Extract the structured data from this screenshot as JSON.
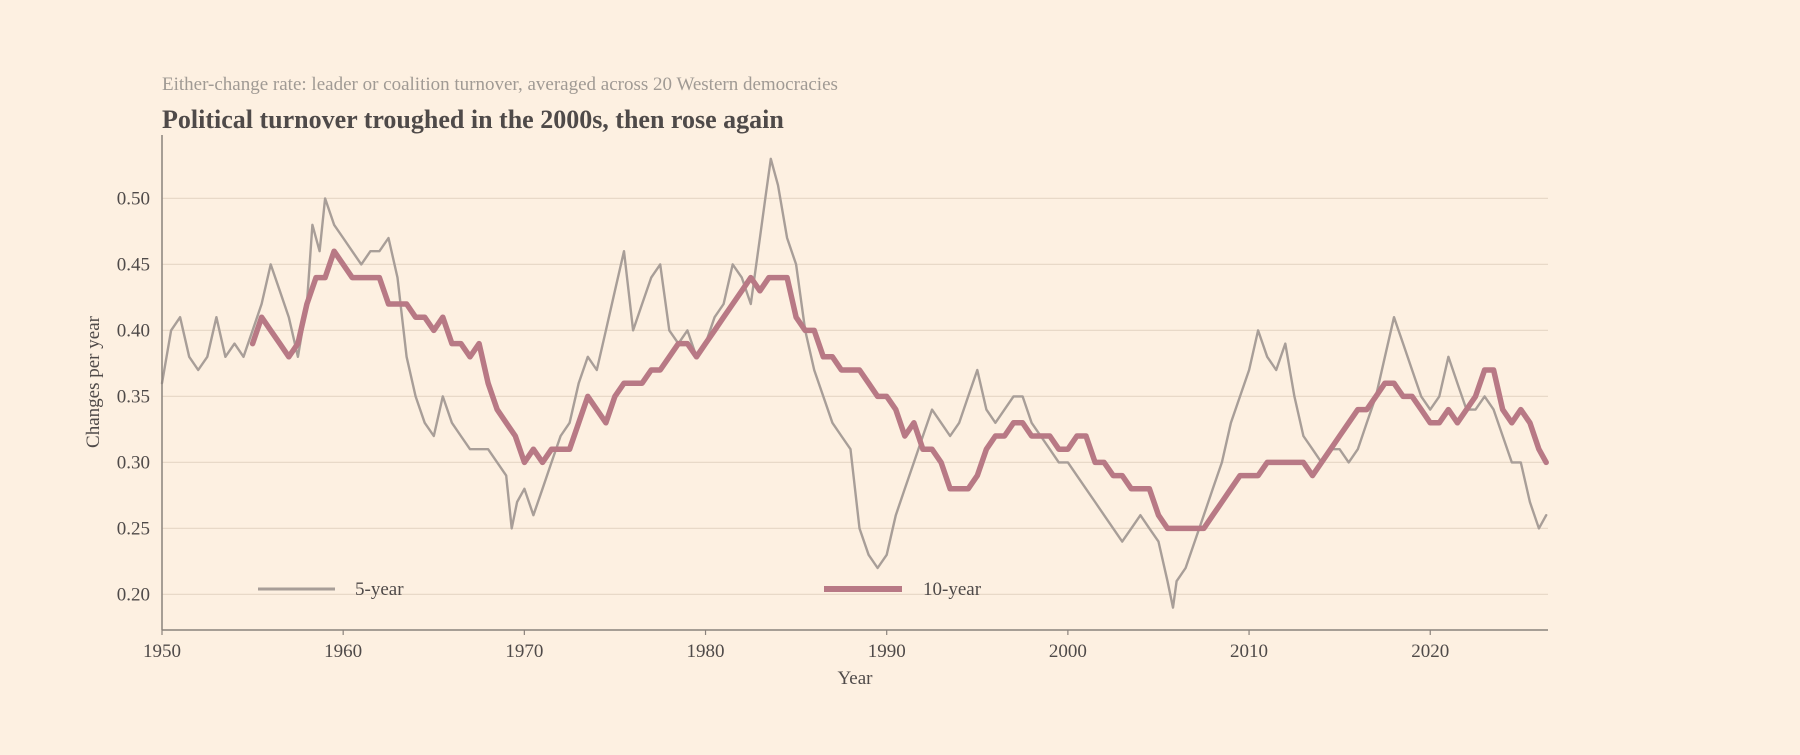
{
  "chart_data": {
    "type": "line",
    "subtitle": "Either-change rate: leader or coalition turnover, averaged across 20 Western democracies",
    "title": "Political turnover troughed in the 2000s, then rose again",
    "xlabel": "Year",
    "ylabel": "Changes per year",
    "xlim": [
      1950,
      2026.5
    ],
    "ylim": [
      0.173,
      0.548
    ],
    "x_ticks": [
      1950,
      1960,
      1970,
      1980,
      1990,
      2000,
      2010,
      2020
    ],
    "y_ticks": [
      "0.20",
      "0.25",
      "0.30",
      "0.35",
      "0.40",
      "0.45",
      "0.50"
    ],
    "grid": "horizontal",
    "legend_placement": "bottom",
    "series": [
      {
        "name": "5-year",
        "color": "#a89e98",
        "points": [
          [
            1950,
            0.36
          ],
          [
            1950.5,
            0.4
          ],
          [
            1951,
            0.41
          ],
          [
            1951.5,
            0.38
          ],
          [
            1952,
            0.37
          ],
          [
            1952.5,
            0.38
          ],
          [
            1953,
            0.41
          ],
          [
            1953.5,
            0.38
          ],
          [
            1954,
            0.39
          ],
          [
            1954.5,
            0.38
          ],
          [
            1955,
            0.4
          ],
          [
            1955.5,
            0.42
          ],
          [
            1956,
            0.45
          ],
          [
            1956.5,
            0.43
          ],
          [
            1957,
            0.41
          ],
          [
            1957.5,
            0.38
          ],
          [
            1958,
            0.42
          ],
          [
            1958.3,
            0.48
          ],
          [
            1958.7,
            0.46
          ],
          [
            1959,
            0.5
          ],
          [
            1959.5,
            0.48
          ],
          [
            1960,
            0.47
          ],
          [
            1960.5,
            0.46
          ],
          [
            1961,
            0.45
          ],
          [
            1961.5,
            0.46
          ],
          [
            1962,
            0.46
          ],
          [
            1962.5,
            0.47
          ],
          [
            1963,
            0.44
          ],
          [
            1963.5,
            0.38
          ],
          [
            1964,
            0.35
          ],
          [
            1964.5,
            0.33
          ],
          [
            1965,
            0.32
          ],
          [
            1965.5,
            0.35
          ],
          [
            1966,
            0.33
          ],
          [
            1966.5,
            0.32
          ],
          [
            1967,
            0.31
          ],
          [
            1967.5,
            0.31
          ],
          [
            1968,
            0.31
          ],
          [
            1968.5,
            0.3
          ],
          [
            1969,
            0.29
          ],
          [
            1969.3,
            0.25
          ],
          [
            1969.6,
            0.27
          ],
          [
            1970,
            0.28
          ],
          [
            1970.5,
            0.26
          ],
          [
            1971,
            0.28
          ],
          [
            1971.5,
            0.3
          ],
          [
            1972,
            0.32
          ],
          [
            1972.5,
            0.33
          ],
          [
            1973,
            0.36
          ],
          [
            1973.5,
            0.38
          ],
          [
            1974,
            0.37
          ],
          [
            1974.5,
            0.4
          ],
          [
            1975,
            0.43
          ],
          [
            1975.5,
            0.46
          ],
          [
            1976,
            0.4
          ],
          [
            1976.5,
            0.42
          ],
          [
            1977,
            0.44
          ],
          [
            1977.5,
            0.45
          ],
          [
            1978,
            0.4
          ],
          [
            1978.5,
            0.39
          ],
          [
            1979,
            0.4
          ],
          [
            1979.5,
            0.38
          ],
          [
            1980,
            0.39
          ],
          [
            1980.5,
            0.41
          ],
          [
            1981,
            0.42
          ],
          [
            1981.5,
            0.45
          ],
          [
            1982,
            0.44
          ],
          [
            1982.5,
            0.42
          ],
          [
            1983,
            0.47
          ],
          [
            1983.3,
            0.5
          ],
          [
            1983.6,
            0.53
          ],
          [
            1984,
            0.51
          ],
          [
            1984.5,
            0.47
          ],
          [
            1985,
            0.45
          ],
          [
            1985.5,
            0.4
          ],
          [
            1986,
            0.37
          ],
          [
            1986.5,
            0.35
          ],
          [
            1987,
            0.33
          ],
          [
            1987.5,
            0.32
          ],
          [
            1988,
            0.31
          ],
          [
            1988.5,
            0.25
          ],
          [
            1989,
            0.23
          ],
          [
            1989.5,
            0.22
          ],
          [
            1990,
            0.23
          ],
          [
            1990.5,
            0.26
          ],
          [
            1991,
            0.28
          ],
          [
            1991.5,
            0.3
          ],
          [
            1992,
            0.32
          ],
          [
            1992.5,
            0.34
          ],
          [
            1993,
            0.33
          ],
          [
            1993.5,
            0.32
          ],
          [
            1994,
            0.33
          ],
          [
            1994.5,
            0.35
          ],
          [
            1995,
            0.37
          ],
          [
            1995.5,
            0.34
          ],
          [
            1996,
            0.33
          ],
          [
            1996.5,
            0.34
          ],
          [
            1997,
            0.35
          ],
          [
            1997.5,
            0.35
          ],
          [
            1998,
            0.33
          ],
          [
            1998.5,
            0.32
          ],
          [
            1999,
            0.31
          ],
          [
            1999.5,
            0.3
          ],
          [
            2000,
            0.3
          ],
          [
            2000.5,
            0.29
          ],
          [
            2001,
            0.28
          ],
          [
            2001.5,
            0.27
          ],
          [
            2002,
            0.26
          ],
          [
            2002.5,
            0.25
          ],
          [
            2003,
            0.24
          ],
          [
            2003.5,
            0.25
          ],
          [
            2004,
            0.26
          ],
          [
            2004.5,
            0.25
          ],
          [
            2005,
            0.24
          ],
          [
            2005.5,
            0.21
          ],
          [
            2005.8,
            0.19
          ],
          [
            2006,
            0.21
          ],
          [
            2006.5,
            0.22
          ],
          [
            2007,
            0.24
          ],
          [
            2007.5,
            0.26
          ],
          [
            2008,
            0.28
          ],
          [
            2008.5,
            0.3
          ],
          [
            2009,
            0.33
          ],
          [
            2009.5,
            0.35
          ],
          [
            2010,
            0.37
          ],
          [
            2010.5,
            0.4
          ],
          [
            2011,
            0.38
          ],
          [
            2011.5,
            0.37
          ],
          [
            2012,
            0.39
          ],
          [
            2012.5,
            0.35
          ],
          [
            2013,
            0.32
          ],
          [
            2013.5,
            0.31
          ],
          [
            2014,
            0.3
          ],
          [
            2014.5,
            0.31
          ],
          [
            2015,
            0.31
          ],
          [
            2015.5,
            0.3
          ],
          [
            2016,
            0.31
          ],
          [
            2016.5,
            0.33
          ],
          [
            2017,
            0.35
          ],
          [
            2017.5,
            0.38
          ],
          [
            2018,
            0.41
          ],
          [
            2018.5,
            0.39
          ],
          [
            2019,
            0.37
          ],
          [
            2019.5,
            0.35
          ],
          [
            2020,
            0.34
          ],
          [
            2020.5,
            0.35
          ],
          [
            2021,
            0.38
          ],
          [
            2021.5,
            0.36
          ],
          [
            2022,
            0.34
          ],
          [
            2022.5,
            0.34
          ],
          [
            2023,
            0.35
          ],
          [
            2023.5,
            0.34
          ],
          [
            2024,
            0.32
          ],
          [
            2024.5,
            0.3
          ],
          [
            2025,
            0.3
          ],
          [
            2025.5,
            0.27
          ],
          [
            2026,
            0.25
          ],
          [
            2026.4,
            0.26
          ]
        ]
      },
      {
        "name": "10-year",
        "color": "#b87985",
        "points": [
          [
            1955,
            0.39
          ],
          [
            1955.5,
            0.41
          ],
          [
            1956,
            0.4
          ],
          [
            1956.5,
            0.39
          ],
          [
            1957,
            0.38
          ],
          [
            1957.5,
            0.39
          ],
          [
            1958,
            0.42
          ],
          [
            1958.5,
            0.44
          ],
          [
            1959,
            0.44
          ],
          [
            1959.5,
            0.46
          ],
          [
            1960,
            0.45
          ],
          [
            1960.5,
            0.44
          ],
          [
            1961,
            0.44
          ],
          [
            1961.5,
            0.44
          ],
          [
            1962,
            0.44
          ],
          [
            1962.5,
            0.42
          ],
          [
            1963,
            0.42
          ],
          [
            1963.5,
            0.42
          ],
          [
            1964,
            0.41
          ],
          [
            1964.5,
            0.41
          ],
          [
            1965,
            0.4
          ],
          [
            1965.5,
            0.41
          ],
          [
            1966,
            0.39
          ],
          [
            1966.5,
            0.39
          ],
          [
            1967,
            0.38
          ],
          [
            1967.5,
            0.39
          ],
          [
            1968,
            0.36
          ],
          [
            1968.5,
            0.34
          ],
          [
            1969,
            0.33
          ],
          [
            1969.5,
            0.32
          ],
          [
            1970,
            0.3
          ],
          [
            1970.5,
            0.31
          ],
          [
            1971,
            0.3
          ],
          [
            1971.5,
            0.31
          ],
          [
            1972,
            0.31
          ],
          [
            1972.5,
            0.31
          ],
          [
            1973,
            0.33
          ],
          [
            1973.5,
            0.35
          ],
          [
            1974,
            0.34
          ],
          [
            1974.5,
            0.33
          ],
          [
            1975,
            0.35
          ],
          [
            1975.5,
            0.36
          ],
          [
            1976,
            0.36
          ],
          [
            1976.5,
            0.36
          ],
          [
            1977,
            0.37
          ],
          [
            1977.5,
            0.37
          ],
          [
            1978,
            0.38
          ],
          [
            1978.5,
            0.39
          ],
          [
            1979,
            0.39
          ],
          [
            1979.5,
            0.38
          ],
          [
            1980,
            0.39
          ],
          [
            1980.5,
            0.4
          ],
          [
            1981,
            0.41
          ],
          [
            1981.5,
            0.42
          ],
          [
            1982,
            0.43
          ],
          [
            1982.5,
            0.44
          ],
          [
            1983,
            0.43
          ],
          [
            1983.5,
            0.44
          ],
          [
            1984,
            0.44
          ],
          [
            1984.5,
            0.44
          ],
          [
            1985,
            0.41
          ],
          [
            1985.5,
            0.4
          ],
          [
            1986,
            0.4
          ],
          [
            1986.5,
            0.38
          ],
          [
            1987,
            0.38
          ],
          [
            1987.5,
            0.37
          ],
          [
            1988,
            0.37
          ],
          [
            1988.5,
            0.37
          ],
          [
            1989,
            0.36
          ],
          [
            1989.5,
            0.35
          ],
          [
            1990,
            0.35
          ],
          [
            1990.5,
            0.34
          ],
          [
            1991,
            0.32
          ],
          [
            1991.5,
            0.33
          ],
          [
            1992,
            0.31
          ],
          [
            1992.5,
            0.31
          ],
          [
            1993,
            0.3
          ],
          [
            1993.5,
            0.28
          ],
          [
            1994,
            0.28
          ],
          [
            1994.5,
            0.28
          ],
          [
            1995,
            0.29
          ],
          [
            1995.5,
            0.31
          ],
          [
            1996,
            0.32
          ],
          [
            1996.5,
            0.32
          ],
          [
            1997,
            0.33
          ],
          [
            1997.5,
            0.33
          ],
          [
            1998,
            0.32
          ],
          [
            1998.5,
            0.32
          ],
          [
            1999,
            0.32
          ],
          [
            1999.5,
            0.31
          ],
          [
            2000,
            0.31
          ],
          [
            2000.5,
            0.32
          ],
          [
            2001,
            0.32
          ],
          [
            2001.5,
            0.3
          ],
          [
            2002,
            0.3
          ],
          [
            2002.5,
            0.29
          ],
          [
            2003,
            0.29
          ],
          [
            2003.5,
            0.28
          ],
          [
            2004,
            0.28
          ],
          [
            2004.5,
            0.28
          ],
          [
            2005,
            0.26
          ],
          [
            2005.5,
            0.25
          ],
          [
            2006,
            0.25
          ],
          [
            2006.5,
            0.25
          ],
          [
            2007,
            0.25
          ],
          [
            2007.5,
            0.25
          ],
          [
            2008,
            0.26
          ],
          [
            2008.5,
            0.27
          ],
          [
            2009,
            0.28
          ],
          [
            2009.5,
            0.29
          ],
          [
            2010,
            0.29
          ],
          [
            2010.5,
            0.29
          ],
          [
            2011,
            0.3
          ],
          [
            2011.5,
            0.3
          ],
          [
            2012,
            0.3
          ],
          [
            2012.5,
            0.3
          ],
          [
            2013,
            0.3
          ],
          [
            2013.5,
            0.29
          ],
          [
            2014,
            0.3
          ],
          [
            2014.5,
            0.31
          ],
          [
            2015,
            0.32
          ],
          [
            2015.5,
            0.33
          ],
          [
            2016,
            0.34
          ],
          [
            2016.5,
            0.34
          ],
          [
            2017,
            0.35
          ],
          [
            2017.5,
            0.36
          ],
          [
            2018,
            0.36
          ],
          [
            2018.5,
            0.35
          ],
          [
            2019,
            0.35
          ],
          [
            2019.5,
            0.34
          ],
          [
            2020,
            0.33
          ],
          [
            2020.5,
            0.33
          ],
          [
            2021,
            0.34
          ],
          [
            2021.5,
            0.33
          ],
          [
            2022,
            0.34
          ],
          [
            2022.5,
            0.35
          ],
          [
            2023,
            0.37
          ],
          [
            2023.5,
            0.37
          ],
          [
            2024,
            0.34
          ],
          [
            2024.5,
            0.33
          ],
          [
            2025,
            0.34
          ],
          [
            2025.5,
            0.33
          ],
          [
            2026,
            0.31
          ],
          [
            2026.4,
            0.3
          ]
        ]
      }
    ]
  }
}
